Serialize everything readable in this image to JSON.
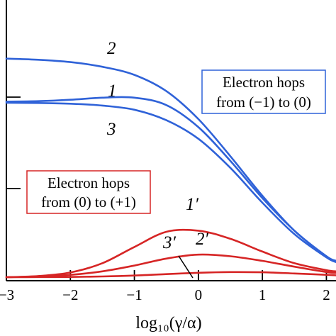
{
  "chart_data": {
    "type": "line",
    "title": "",
    "xlabel": "log₁₀(γ/α)",
    "ylabel": "",
    "xlim": [
      -3,
      2.15
    ],
    "ylim": [
      0,
      1.0
    ],
    "xticks": [
      -3,
      -2,
      -1,
      0,
      1,
      2
    ],
    "xtick_labels": [
      "−3",
      "−2",
      "−1",
      "0",
      "1",
      "2"
    ],
    "grid": false,
    "annotations": [
      {
        "text_lines": [
          "Electron hops",
          "from (−1) to (0)"
        ],
        "color": "#2f62d8",
        "placement": "right-upper"
      },
      {
        "text_lines": [
          "Electron hops",
          "from (0) to (+1)"
        ],
        "color": "#d62525",
        "placement": "left-middle"
      }
    ],
    "series": [
      {
        "label": "2",
        "color": "#2f62d8",
        "x": [
          -3,
          -2.5,
          -2,
          -1.5,
          -1,
          -0.5,
          0,
          0.5,
          1,
          1.5,
          2,
          2.15
        ],
        "y": [
          0.94,
          0.935,
          0.925,
          0.905,
          0.87,
          0.8,
          0.68,
          0.52,
          0.35,
          0.2,
          0.09,
          0.07
        ]
      },
      {
        "label": "1",
        "color": "#2f62d8",
        "x": [
          -3,
          -2.5,
          -2,
          -1.5,
          -1,
          -0.5,
          0,
          0.5,
          1,
          1.5,
          2,
          2.15
        ],
        "y": [
          0.755,
          0.757,
          0.763,
          0.772,
          0.772,
          0.74,
          0.645,
          0.5,
          0.34,
          0.2,
          0.09,
          0.07
        ]
      },
      {
        "label": "3",
        "color": "#2f62d8",
        "x": [
          -3,
          -2.5,
          -2,
          -1.5,
          -1,
          -0.5,
          0,
          0.5,
          1,
          1.5,
          2,
          2.15
        ],
        "y": [
          0.75,
          0.749,
          0.746,
          0.738,
          0.72,
          0.675,
          0.595,
          0.47,
          0.32,
          0.185,
          0.085,
          0.065
        ]
      },
      {
        "label": "1′",
        "color": "#d62525",
        "x": [
          -3,
          -2.5,
          -2,
          -1.5,
          -1,
          -0.5,
          0,
          0.5,
          1,
          1.5,
          2,
          2.15
        ],
        "y": [
          0.0,
          0.005,
          0.02,
          0.06,
          0.13,
          0.195,
          0.2,
          0.165,
          0.11,
          0.06,
          0.03,
          0.025
        ]
      },
      {
        "label": "2′",
        "color": "#d62525",
        "x": [
          -3,
          -2.5,
          -2,
          -1.5,
          -1,
          -0.5,
          0,
          0.5,
          1,
          1.5,
          2,
          2.15
        ],
        "y": [
          0.0,
          0.003,
          0.01,
          0.025,
          0.05,
          0.08,
          0.097,
          0.09,
          0.07,
          0.045,
          0.022,
          0.018
        ]
      },
      {
        "label": "3′",
        "color": "#d62525",
        "x": [
          -3,
          -2.5,
          -2,
          -1.5,
          -1,
          -0.5,
          0,
          0.5,
          1,
          1.5,
          2,
          2.15
        ],
        "y": [
          0.0,
          0.0005,
          0.001,
          0.003,
          0.007,
          0.013,
          0.019,
          0.022,
          0.021,
          0.016,
          0.01,
          0.008
        ]
      }
    ]
  }
}
